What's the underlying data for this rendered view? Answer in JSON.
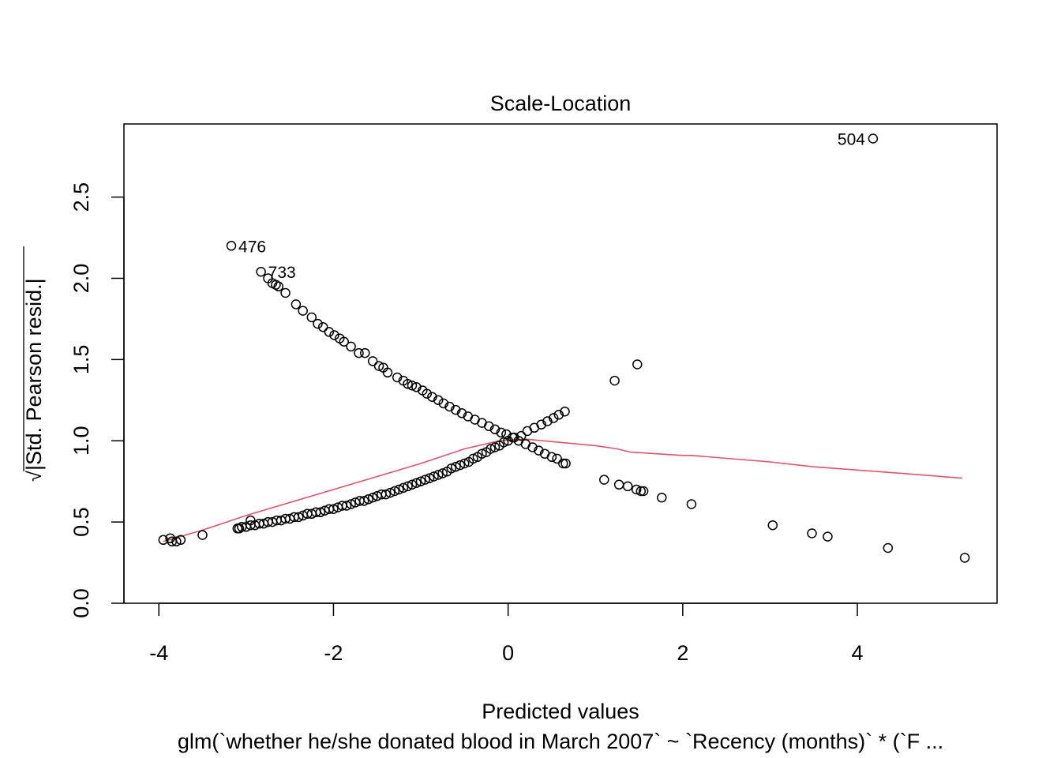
{
  "chart_data": {
    "type": "scatter",
    "title": "Scale-Location",
    "xlabel": "Predicted values",
    "ylabel": "√|Std. Pearson resid.|",
    "ylabel_radical": "√",
    "ylabel_body": "|Std. Pearson resid.|",
    "subtitle": "glm(`whether he/she donated blood in March 2007` ~ `Recency (months)` * (`F ...",
    "xlim": [
      -4.4,
      5.6
    ],
    "ylim": [
      0.0,
      2.95
    ],
    "x_ticks": [
      -4,
      -2,
      0,
      2,
      4
    ],
    "x_tick_labels": [
      "-4",
      "-2",
      "0",
      "2",
      "4"
    ],
    "y_ticks": [
      0.0,
      0.5,
      1.0,
      1.5,
      2.0,
      2.5
    ],
    "y_tick_labels": [
      "0.0",
      "0.5",
      "1.0",
      "1.5",
      "2.0",
      "2.5"
    ],
    "grid": false,
    "colors": {
      "points": "#000000",
      "smooth": "#df536b"
    },
    "labeled_points": [
      {
        "label": "504",
        "x": 4.18,
        "y": 2.86
      },
      {
        "label": "476",
        "x": -3.17,
        "y": 2.2
      },
      {
        "label": "733",
        "x": -2.83,
        "y": 2.04
      }
    ],
    "points": [
      [
        4.18,
        2.86
      ],
      [
        -3.17,
        2.2
      ],
      [
        -2.83,
        2.04
      ],
      [
        -2.75,
        2.0
      ],
      [
        -2.7,
        1.97
      ],
      [
        -2.66,
        1.96
      ],
      [
        -2.63,
        1.95
      ],
      [
        -2.55,
        1.91
      ],
      [
        -2.43,
        1.84
      ],
      [
        -2.35,
        1.8
      ],
      [
        -2.25,
        1.76
      ],
      [
        -2.18,
        1.72
      ],
      [
        -2.12,
        1.7
      ],
      [
        -2.05,
        1.67
      ],
      [
        -1.99,
        1.65
      ],
      [
        -1.93,
        1.63
      ],
      [
        -1.88,
        1.61
      ],
      [
        -1.8,
        1.58
      ],
      [
        -1.71,
        1.54
      ],
      [
        -1.64,
        1.54
      ],
      [
        -1.55,
        1.49
      ],
      [
        -1.48,
        1.46
      ],
      [
        -1.43,
        1.45
      ],
      [
        -1.38,
        1.42
      ],
      [
        -1.27,
        1.39
      ],
      [
        -1.2,
        1.37
      ],
      [
        -1.15,
        1.35
      ],
      [
        -1.1,
        1.34
      ],
      [
        -1.05,
        1.33
      ],
      [
        -0.98,
        1.31
      ],
      [
        -0.93,
        1.29
      ],
      [
        -0.87,
        1.27
      ],
      [
        -0.8,
        1.25
      ],
      [
        -0.74,
        1.23
      ],
      [
        -0.67,
        1.21
      ],
      [
        -0.6,
        1.19
      ],
      [
        -0.53,
        1.17
      ],
      [
        -0.46,
        1.15
      ],
      [
        -0.38,
        1.13
      ],
      [
        -0.3,
        1.11
      ],
      [
        -0.22,
        1.09
      ],
      [
        -0.15,
        1.07
      ],
      [
        -0.08,
        1.05
      ],
      [
        -0.02,
        1.04
      ],
      [
        0.05,
        1.02
      ],
      [
        0.12,
        1.0
      ],
      [
        0.2,
        0.98
      ],
      [
        0.28,
        0.96
      ],
      [
        0.35,
        0.94
      ],
      [
        0.42,
        0.92
      ],
      [
        0.5,
        0.9
      ],
      [
        0.56,
        0.89
      ],
      [
        0.63,
        0.86
      ],
      [
        0.66,
        0.86
      ],
      [
        1.1,
        0.76
      ],
      [
        1.27,
        0.73
      ],
      [
        1.37,
        0.72
      ],
      [
        1.47,
        0.7
      ],
      [
        1.52,
        0.69
      ],
      [
        1.55,
        0.69
      ],
      [
        1.76,
        0.65
      ],
      [
        2.1,
        0.61
      ],
      [
        3.03,
        0.48
      ],
      [
        3.48,
        0.43
      ],
      [
        3.66,
        0.41
      ],
      [
        4.35,
        0.34
      ],
      [
        5.23,
        0.28
      ],
      [
        1.22,
        1.37
      ],
      [
        1.48,
        1.47
      ],
      [
        -3.95,
        0.39
      ],
      [
        -3.87,
        0.4
      ],
      [
        -3.85,
        0.38
      ],
      [
        -3.8,
        0.38
      ],
      [
        -3.75,
        0.39
      ],
      [
        -3.5,
        0.42
      ],
      [
        -3.08,
        0.46
      ],
      [
        -3.05,
        0.47
      ],
      [
        -3.0,
        0.47
      ],
      [
        -2.95,
        0.48
      ],
      [
        -2.9,
        0.48
      ],
      [
        -2.85,
        0.49
      ],
      [
        -2.8,
        0.49
      ],
      [
        -2.75,
        0.5
      ],
      [
        -2.7,
        0.5
      ],
      [
        -2.65,
        0.51
      ],
      [
        -2.6,
        0.51
      ],
      [
        -2.55,
        0.52
      ],
      [
        -2.5,
        0.52
      ],
      [
        -2.45,
        0.53
      ],
      [
        -2.4,
        0.53
      ],
      [
        -2.35,
        0.54
      ],
      [
        -2.3,
        0.55
      ],
      [
        -2.25,
        0.55
      ],
      [
        -2.2,
        0.56
      ],
      [
        -2.15,
        0.56
      ],
      [
        -2.1,
        0.57
      ],
      [
        -2.05,
        0.58
      ],
      [
        -2.0,
        0.58
      ],
      [
        -1.95,
        0.59
      ],
      [
        -1.9,
        0.6
      ],
      [
        -1.85,
        0.6
      ],
      [
        -1.8,
        0.61
      ],
      [
        -1.75,
        0.62
      ],
      [
        -1.7,
        0.63
      ],
      [
        -1.65,
        0.63
      ],
      [
        -1.6,
        0.64
      ],
      [
        -1.55,
        0.65
      ],
      [
        -1.5,
        0.66
      ],
      [
        -1.45,
        0.67
      ],
      [
        -1.4,
        0.67
      ],
      [
        -1.35,
        0.68
      ],
      [
        -1.3,
        0.69
      ],
      [
        -1.25,
        0.7
      ],
      [
        -1.2,
        0.71
      ],
      [
        -1.15,
        0.72
      ],
      [
        -1.1,
        0.73
      ],
      [
        -1.05,
        0.74
      ],
      [
        -1.0,
        0.75
      ],
      [
        -0.95,
        0.76
      ],
      [
        -0.9,
        0.77
      ],
      [
        -0.85,
        0.78
      ],
      [
        -0.8,
        0.79
      ],
      [
        -0.75,
        0.8
      ],
      [
        -0.7,
        0.81
      ],
      [
        -0.65,
        0.83
      ],
      [
        -0.6,
        0.84
      ],
      [
        -0.55,
        0.85
      ],
      [
        -0.5,
        0.86
      ],
      [
        -0.45,
        0.87
      ],
      [
        -0.4,
        0.89
      ],
      [
        -0.35,
        0.9
      ],
      [
        -0.3,
        0.92
      ],
      [
        -0.25,
        0.93
      ],
      [
        -0.2,
        0.95
      ],
      [
        -0.15,
        0.96
      ],
      [
        -0.1,
        0.97
      ],
      [
        -0.05,
        0.99
      ],
      [
        0.0,
        1.0
      ],
      [
        0.07,
        1.02
      ],
      [
        0.15,
        1.03
      ],
      [
        0.22,
        1.06
      ],
      [
        0.3,
        1.08
      ],
      [
        0.38,
        1.1
      ],
      [
        0.45,
        1.12
      ],
      [
        0.52,
        1.14
      ],
      [
        0.58,
        1.16
      ],
      [
        0.65,
        1.18
      ],
      [
        -2.95,
        0.51
      ],
      [
        -3.1,
        0.46
      ]
    ],
    "smooth_line": [
      [
        -3.95,
        0.38
      ],
      [
        -3.5,
        0.45
      ],
      [
        -3.0,
        0.54
      ],
      [
        -2.5,
        0.62
      ],
      [
        -2.0,
        0.7
      ],
      [
        -1.5,
        0.78
      ],
      [
        -1.0,
        0.86
      ],
      [
        -0.5,
        0.95
      ],
      [
        -0.1,
        1.0
      ],
      [
        0.2,
        1.01
      ],
      [
        0.6,
        0.99
      ],
      [
        1.0,
        0.97
      ],
      [
        1.25,
        0.95
      ],
      [
        1.4,
        0.93
      ],
      [
        2.0,
        0.91
      ],
      [
        2.1,
        0.91
      ],
      [
        3.0,
        0.87
      ],
      [
        3.5,
        0.84
      ],
      [
        4.0,
        0.82
      ],
      [
        4.5,
        0.8
      ],
      [
        5.2,
        0.77
      ]
    ]
  }
}
